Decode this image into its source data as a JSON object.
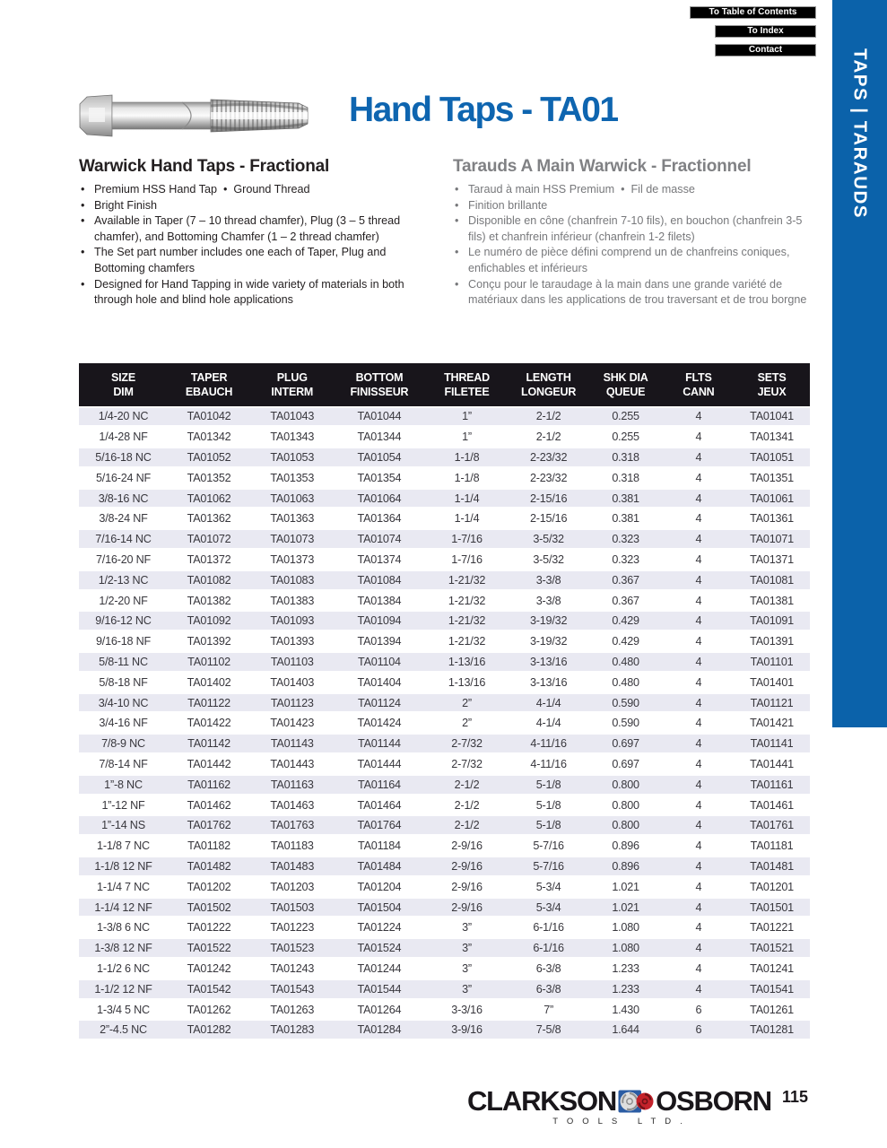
{
  "nav": {
    "buttons": [
      "To Table of Contents",
      "To Index",
      "Contact"
    ]
  },
  "sidebar": {
    "label": "TAPS | TARAUDS",
    "color": "#0b62aa"
  },
  "header": {
    "title": "Hand Taps - TA01",
    "title_color": "#0e65b0"
  },
  "product": {
    "english": {
      "heading": "Warwick Hand Taps - Fractional",
      "bullets": [
        "Premium HSS Hand Tap  •  Ground Thread",
        "Bright Finish",
        "Available in Taper (7 – 10 thread chamfer), Plug (3 – 5 thread chamfer), and Bottoming Chamfer (1 – 2 thread chamfer)",
        "The Set part number includes one each of Taper, Plug and Bottoming chamfers",
        "Designed for Hand Tapping in wide variety of materials in both through hole and blind hole applications"
      ]
    },
    "french": {
      "heading": "Tarauds A Main Warwick - Fractionnel",
      "bullets": [
        "Taraud à main HSS Premium  •  Fil de masse",
        "Finition brillante",
        "Disponible en cône (chanfrein 7-10 fils), en bouchon (chanfrein 3-5 fils) et chanfrein inférieur (chanfrein 1-2 filets)",
        "Le numéro de pièce défini comprend un de chanfreins coniques, enfichables et inférieurs",
        "Conçu pour le taraudage à la main dans une grande variété de matériaux dans les applications de trou traversant et de trou borgne"
      ]
    }
  },
  "table": {
    "columns": [
      {
        "en": "SIZE",
        "fr": "DIM"
      },
      {
        "en": "TAPER",
        "fr": "EBAUCH"
      },
      {
        "en": "PLUG",
        "fr": "INTERM"
      },
      {
        "en": "BOTTOM",
        "fr": "FINISSEUR"
      },
      {
        "en": "THREAD",
        "fr": "FILETEE"
      },
      {
        "en": "LENGTH",
        "fr": "LONGEUR"
      },
      {
        "en": "SHK DIA",
        "fr": "QUEUE"
      },
      {
        "en": "FLTS",
        "fr": "CANN"
      },
      {
        "en": "SETS",
        "fr": "JEUX"
      }
    ],
    "rows": [
      [
        "1/4-20 NC",
        "TA01042",
        "TA01043",
        "TA01044",
        "1”",
        "2-1/2",
        "0.255",
        "4",
        "TA01041"
      ],
      [
        "1/4-28 NF",
        "TA01342",
        "TA01343",
        "TA01344",
        "1”",
        "2-1/2",
        "0.255",
        "4",
        "TA01341"
      ],
      [
        "5/16-18 NC",
        "TA01052",
        "TA01053",
        "TA01054",
        "1-1/8",
        "2-23/32",
        "0.318",
        "4",
        "TA01051"
      ],
      [
        "5/16-24 NF",
        "TA01352",
        "TA01353",
        "TA01354",
        "1-1/8",
        "2-23/32",
        "0.318",
        "4",
        "TA01351"
      ],
      [
        "3/8-16 NC",
        "TA01062",
        "TA01063",
        "TA01064",
        "1-1/4",
        "2-15/16",
        "0.381",
        "4",
        "TA01061"
      ],
      [
        "3/8-24 NF",
        "TA01362",
        "TA01363",
        "TA01364",
        "1-1/4",
        "2-15/16",
        "0.381",
        "4",
        "TA01361"
      ],
      [
        "7/16-14 NC",
        "TA01072",
        "TA01073",
        "TA01074",
        "1-7/16",
        "3-5/32",
        "0.323",
        "4",
        "TA01071"
      ],
      [
        "7/16-20 NF",
        "TA01372",
        "TA01373",
        "TA01374",
        "1-7/16",
        "3-5/32",
        "0.323",
        "4",
        "TA01371"
      ],
      [
        "1/2-13 NC",
        "TA01082",
        "TA01083",
        "TA01084",
        "1-21/32",
        "3-3/8",
        "0.367",
        "4",
        "TA01081"
      ],
      [
        "1/2-20 NF",
        "TA01382",
        "TA01383",
        "TA01384",
        "1-21/32",
        "3-3/8",
        "0.367",
        "4",
        "TA01381"
      ],
      [
        "9/16-12 NC",
        "TA01092",
        "TA01093",
        "TA01094",
        "1-21/32",
        "3-19/32",
        "0.429",
        "4",
        "TA01091"
      ],
      [
        "9/16-18 NF",
        "TA01392",
        "TA01393",
        "TA01394",
        "1-21/32",
        "3-19/32",
        "0.429",
        "4",
        "TA01391"
      ],
      [
        "5/8-11 NC",
        "TA01102",
        "TA01103",
        "TA01104",
        "1-13/16",
        "3-13/16",
        "0.480",
        "4",
        "TA01101"
      ],
      [
        "5/8-18 NF",
        "TA01402",
        "TA01403",
        "TA01404",
        "1-13/16",
        "3-13/16",
        "0.480",
        "4",
        "TA01401"
      ],
      [
        "3/4-10 NC",
        "TA01122",
        "TA01123",
        "TA01124",
        "2”",
        "4-1/4",
        "0.590",
        "4",
        "TA01121"
      ],
      [
        "3/4-16 NF",
        "TA01422",
        "TA01423",
        "TA01424",
        "2”",
        "4-1/4",
        "0.590",
        "4",
        "TA01421"
      ],
      [
        "7/8-9 NC",
        "TA01142",
        "TA01143",
        "TA01144",
        "2-7/32",
        "4-11/16",
        "0.697",
        "4",
        "TA01141"
      ],
      [
        "7/8-14 NF",
        "TA01442",
        "TA01443",
        "TA01444",
        "2-7/32",
        "4-11/16",
        "0.697",
        "4",
        "TA01441"
      ],
      [
        "1”-8 NC",
        "TA01162",
        "TA01163",
        "TA01164",
        "2-1/2",
        "5-1/8",
        "0.800",
        "4",
        "TA01161"
      ],
      [
        "1”-12 NF",
        "TA01462",
        "TA01463",
        "TA01464",
        "2-1/2",
        "5-1/8",
        "0.800",
        "4",
        "TA01461"
      ],
      [
        "1”-14 NS",
        "TA01762",
        "TA01763",
        "TA01764",
        "2-1/2",
        "5-1/8",
        "0.800",
        "4",
        "TA01761"
      ],
      [
        "1-1/8 7 NC",
        "TA01182",
        "TA01183",
        "TA01184",
        "2-9/16",
        "5-7/16",
        "0.896",
        "4",
        "TA01181"
      ],
      [
        "1-1/8 12 NF",
        "TA01482",
        "TA01483",
        "TA01484",
        "2-9/16",
        "5-7/16",
        "0.896",
        "4",
        "TA01481"
      ],
      [
        "1-1/4 7 NC",
        "TA01202",
        "TA01203",
        "TA01204",
        "2-9/16",
        "5-3/4",
        "1.021",
        "4",
        "TA01201"
      ],
      [
        "1-1/4 12 NF",
        "TA01502",
        "TA01503",
        "TA01504",
        "2-9/16",
        "5-3/4",
        "1.021",
        "4",
        "TA01501"
      ],
      [
        "1-3/8 6 NC",
        "TA01222",
        "TA01223",
        "TA01224",
        "3”",
        "6-1/16",
        "1.080",
        "4",
        "TA01221"
      ],
      [
        "1-3/8 12 NF",
        "TA01522",
        "TA01523",
        "TA01524",
        "3”",
        "6-1/16",
        "1.080",
        "4",
        "TA01521"
      ],
      [
        "1-1/2 6 NC",
        "TA01242",
        "TA01243",
        "TA01244",
        "3”",
        "6-3/8",
        "1.233",
        "4",
        "TA01241"
      ],
      [
        "1-1/2 12 NF",
        "TA01542",
        "TA01543",
        "TA01544",
        "3”",
        "6-3/8",
        "1.233",
        "4",
        "TA01541"
      ],
      [
        "1-3/4 5 NC",
        "TA01262",
        "TA01263",
        "TA01264",
        "3-3/16",
        "7”",
        "1.430",
        "6",
        "TA01261"
      ],
      [
        "2”-4.5 NC",
        "TA01282",
        "TA01283",
        "TA01284",
        "3-9/16",
        "7-5/8",
        "1.644",
        "6",
        "TA01281"
      ]
    ]
  },
  "footer": {
    "brand_left": "CLARKSON",
    "brand_right": "OSBORN",
    "brand_sub": "TOOLS LTD.",
    "page_number": "115"
  }
}
